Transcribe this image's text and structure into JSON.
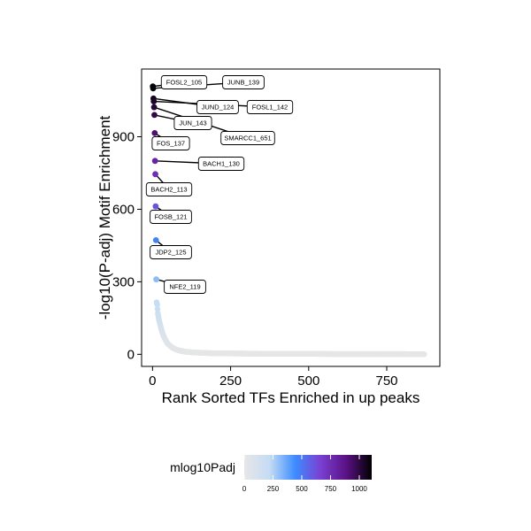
{
  "chart_data": {
    "type": "scatter",
    "xlabel": "Rank Sorted TFs Enriched in up peaks",
    "ylabel": "-log10(P-adj) Motif Enrichment",
    "xlim": [
      -35,
      920
    ],
    "ylim": [
      -50,
      1180
    ],
    "x_ticks": [
      0,
      250,
      500,
      750
    ],
    "y_ticks": [
      0,
      300,
      600,
      900
    ],
    "grid": false,
    "labeled_points": [
      {
        "label": "FOSL2_105",
        "x": 1,
        "y": 1108
      },
      {
        "label": "JUNB_139",
        "x": 2,
        "y": 1100
      },
      {
        "label": "JUND_124",
        "x": 3,
        "y": 1058
      },
      {
        "label": "FOSL1_142",
        "x": 4,
        "y": 1046
      },
      {
        "label": "SMARCC1_651",
        "x": 5,
        "y": 1022
      },
      {
        "label": "JUN_143",
        "x": 6,
        "y": 990
      },
      {
        "label": "FOS_137",
        "x": 7,
        "y": 915
      },
      {
        "label": "BACH1_130",
        "x": 8,
        "y": 800
      },
      {
        "label": "BACH2_113",
        "x": 9,
        "y": 745
      },
      {
        "label": "FOSB_121",
        "x": 10,
        "y": 612
      },
      {
        "label": "JDP2_125",
        "x": 11,
        "y": 472
      },
      {
        "label": "NFE2_119",
        "x": 12,
        "y": 310
      }
    ],
    "tail_points": {
      "x": [
        13,
        14,
        15,
        17,
        19,
        21,
        24,
        27,
        30,
        34,
        38,
        43,
        48,
        55,
        63,
        72,
        82,
        95,
        110,
        130,
        160,
        200,
        300,
        400,
        500,
        600,
        700,
        800,
        870
      ],
      "y": [
        215,
        210,
        205,
        170,
        155,
        140,
        125,
        110,
        95,
        80,
        68,
        56,
        45,
        36,
        28,
        22,
        17,
        13,
        10,
        8,
        6,
        4,
        3,
        2,
        2,
        1,
        1,
        1,
        0
      ]
    },
    "legend": {
      "title": "mlog10Padj",
      "ticks": [
        0,
        250,
        500,
        750,
        1000
      ],
      "range": [
        0,
        1108
      ],
      "colors": [
        "#e6e6e6",
        "#c4dcf4",
        "#3d8cff",
        "#7a3fd2",
        "#5a1185",
        "#000000"
      ],
      "placement": "bottom"
    }
  }
}
